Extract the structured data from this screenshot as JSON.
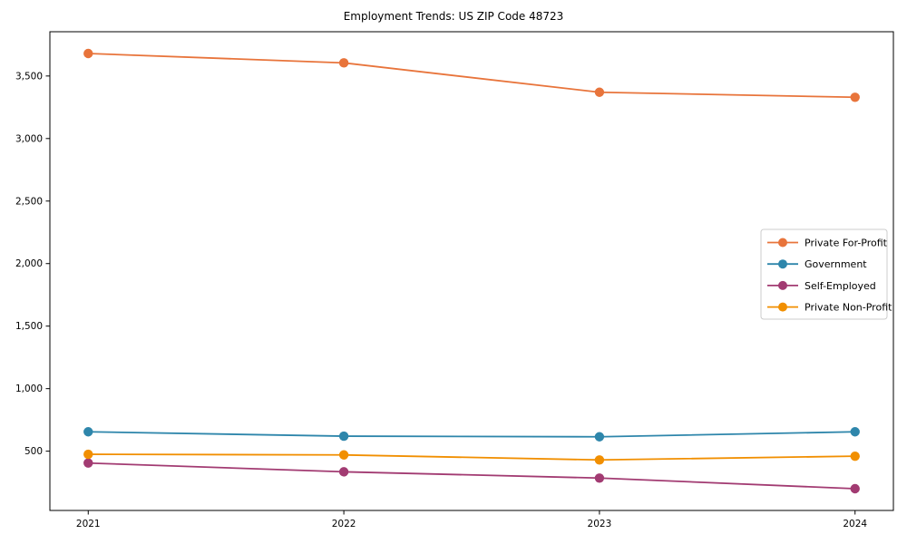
{
  "page": {
    "background_color": "#ffffff"
  },
  "chart_data": {
    "type": "line",
    "title": "Employment Trends: US ZIP Code 48723",
    "xlabel": "",
    "ylabel": "",
    "x": [
      2021,
      2022,
      2023,
      2024
    ],
    "x_tick_labels": [
      "2021",
      "2022",
      "2023",
      "2024"
    ],
    "series": [
      {
        "name": "Private For-Profit",
        "color": "#E8743B",
        "values": [
          3680,
          3605,
          3370,
          3330
        ]
      },
      {
        "name": "Government",
        "color": "#2E86AB",
        "values": [
          655,
          620,
          615,
          655
        ]
      },
      {
        "name": "Self-Employed",
        "color": "#A23B72",
        "values": [
          405,
          335,
          285,
          200
        ]
      },
      {
        "name": "Private Non-Profit",
        "color": "#F18F01",
        "values": [
          475,
          470,
          430,
          460
        ]
      }
    ],
    "y_ticks": [
      500,
      1000,
      1500,
      2000,
      2500,
      3000,
      3500
    ],
    "y_tick_labels": [
      "500",
      "1,000",
      "1,500",
      "2,000",
      "2,500",
      "3,000",
      "3,500"
    ],
    "xlim": [
      2020.85,
      2024.15
    ],
    "ylim": [
      26,
      3854
    ],
    "grid": false,
    "legend_position": "center right",
    "legend_background": "#ffffff",
    "legend_border_color": "#cccccc",
    "axis_color": "#000000",
    "tick_label_color": "#1a1a1a",
    "marker": "circle",
    "line_width": 1.8,
    "marker_radius": 5.2
  }
}
